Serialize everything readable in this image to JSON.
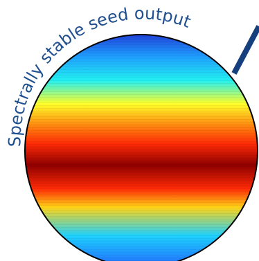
{
  "caption": "Spectrally stable seed output",
  "colors": {
    "text": "#1f4f8f",
    "arrow": "#153f7d",
    "outline": "#000000",
    "colormap": [
      "#1f3dd6",
      "#1f9fff",
      "#22f0f2",
      "#ffff2a",
      "#ff8a10",
      "#ff2a06",
      "#8f0000",
      "#ff2a06",
      "#ffd317",
      "#1fd2ff",
      "#2063ff"
    ]
  },
  "icon": "interference-pattern-disc"
}
